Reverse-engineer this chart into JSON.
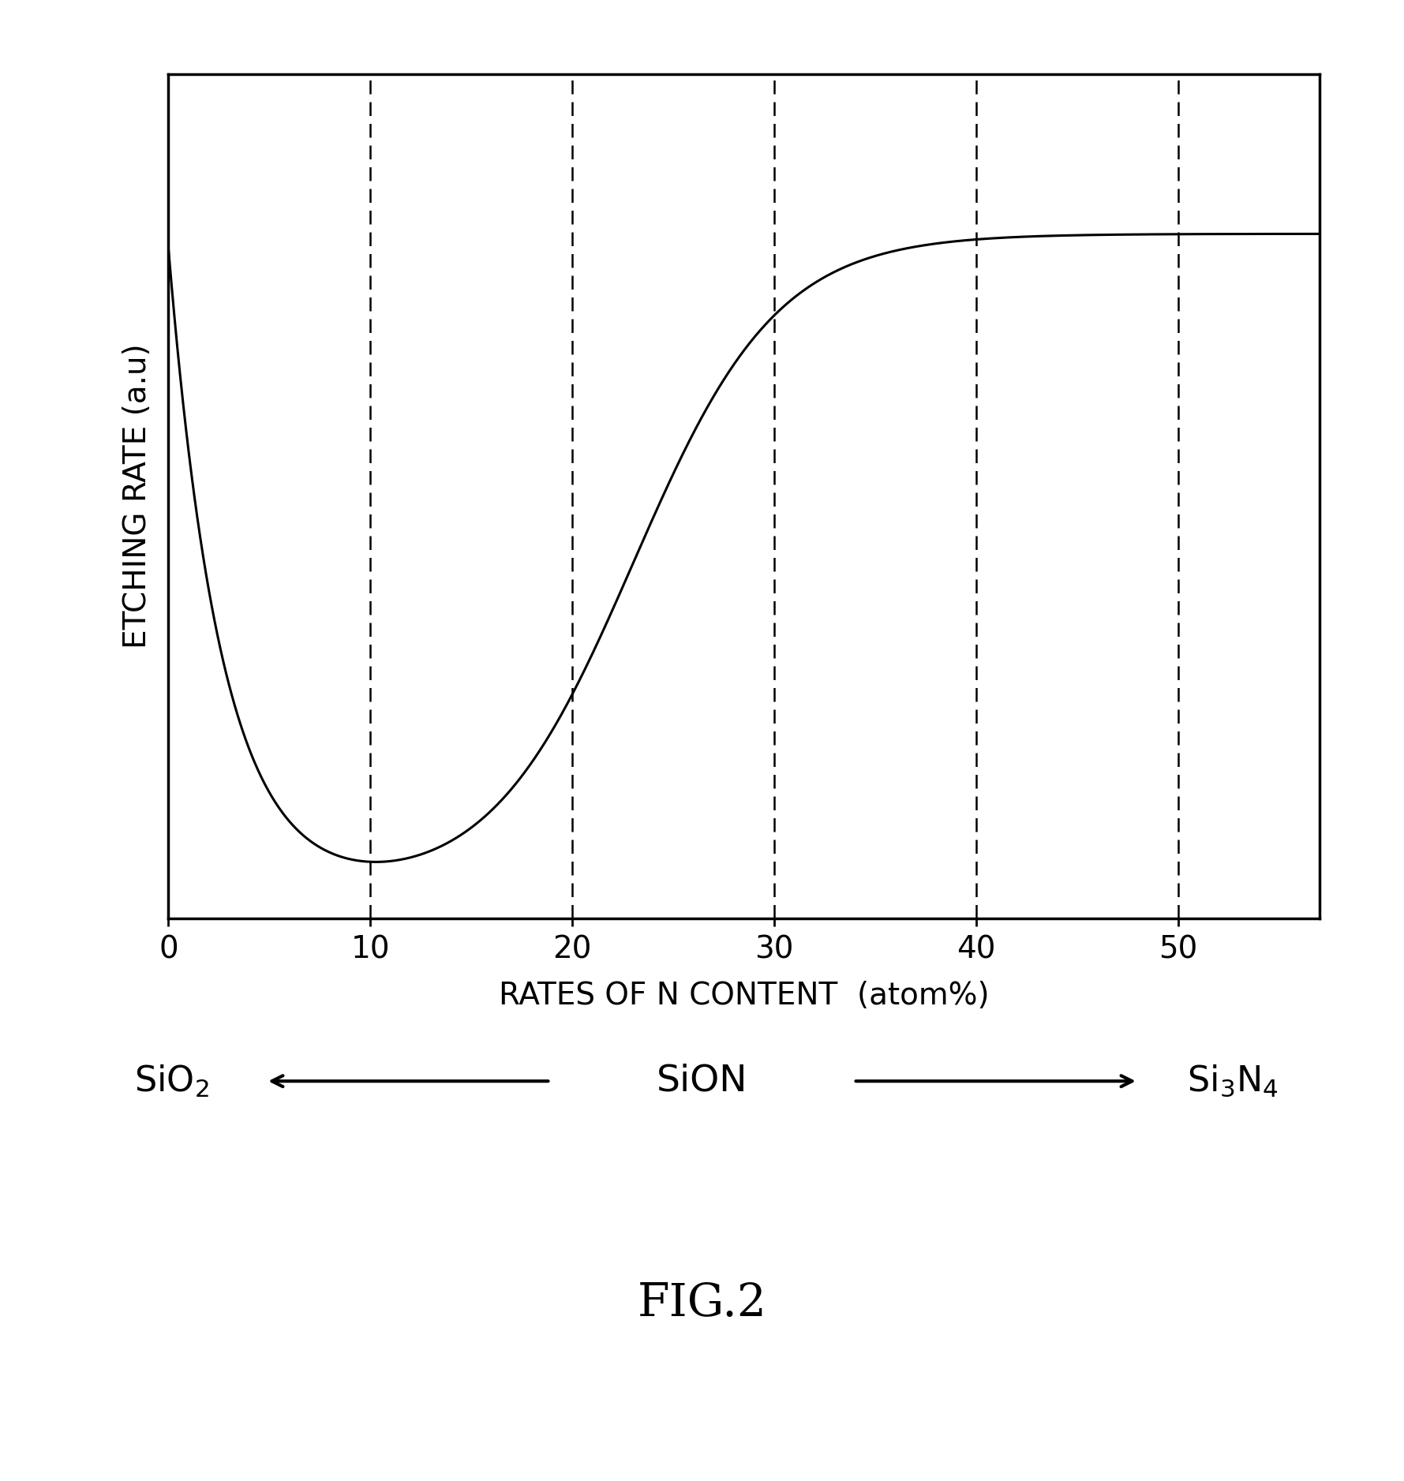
{
  "xlim": [
    0,
    57
  ],
  "ylim": [
    0,
    1.05
  ],
  "x_ticks": [
    0,
    10,
    20,
    30,
    40,
    50
  ],
  "dashed_lines_x": [
    10,
    20,
    30,
    40,
    50
  ],
  "line_color": "#000000",
  "background_color": "#ffffff",
  "fig2_label": "FIG.2",
  "xlabel_text": "RATES OF N CONTENT  (atom%)",
  "ylabel_text": "ETCHING RATE (a.u)",
  "sio2_label": "SiO$_2$",
  "sion_label": "SiON",
  "si3n4_label": "Si$_3$N$_4$"
}
